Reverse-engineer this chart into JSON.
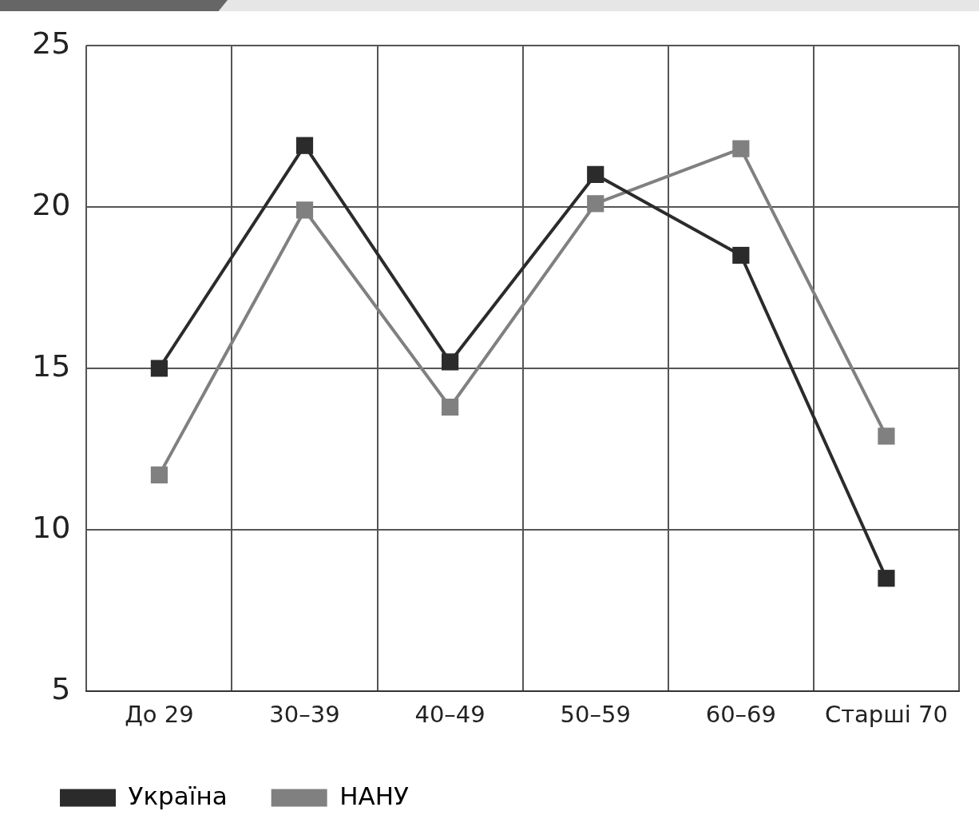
{
  "chart_data": {
    "type": "line",
    "categories": [
      "До 29",
      "30–39",
      "40–49",
      "50–59",
      "60–69",
      "Старші 70"
    ],
    "series": [
      {
        "name": "Україна",
        "color": "#2b2b2b",
        "values": [
          15.0,
          21.9,
          15.2,
          21.0,
          18.5,
          8.5
        ]
      },
      {
        "name": "НАНУ",
        "color": "#808080",
        "values": [
          11.7,
          19.9,
          13.8,
          20.1,
          21.8,
          12.9
        ]
      }
    ],
    "ylim": [
      5,
      25
    ],
    "yticks": [
      5,
      10,
      15,
      20,
      25
    ],
    "grid": true,
    "legend": "bottom left",
    "marker": "square",
    "line_style": "solid"
  }
}
